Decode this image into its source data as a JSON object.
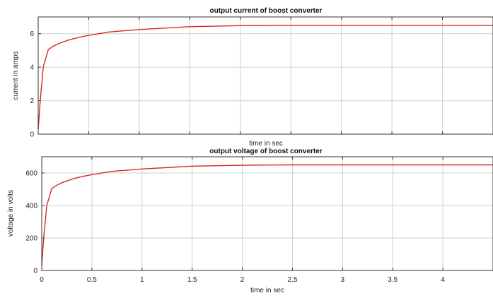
{
  "colors": {
    "line": "#d62728",
    "grid": "#cfcfcf",
    "frame": "#333333",
    "background": "#ffffff"
  },
  "chart_data": [
    {
      "type": "line",
      "title": "output current of boost converter",
      "xlabel": "time in sec",
      "ylabel": "current in amps",
      "xlim": [
        0,
        4.5
      ],
      "ylim": [
        0,
        7
      ],
      "xticks": [
        0,
        0.5,
        1,
        1.5,
        2,
        2.5,
        3,
        3.5,
        4
      ],
      "xtick_labels": [
        "",
        "",
        "",
        "",
        "",
        "",
        "",
        "",
        ""
      ],
      "yticks": [
        0,
        2,
        4,
        6
      ],
      "ytick_labels": [
        "0",
        "2",
        "4",
        "6"
      ],
      "grid": true,
      "series": [
        {
          "x": [
            0,
            0.02,
            0.05,
            0.1,
            0.15,
            0.2,
            0.3,
            0.4,
            0.5,
            0.7,
            1,
            1.5,
            2,
            2.5,
            3,
            3.5,
            4,
            4.5
          ],
          "y": [
            0.3,
            2.0,
            4.0,
            5.05,
            5.25,
            5.4,
            5.62,
            5.78,
            5.9,
            6.1,
            6.25,
            6.42,
            6.48,
            6.5,
            6.5,
            6.5,
            6.5,
            6.5
          ]
        }
      ]
    },
    {
      "type": "line",
      "title": "output voltage of boost converter",
      "xlabel": "time in sec",
      "ylabel": "voltage in volts",
      "xlim": [
        0,
        4.5
      ],
      "ylim": [
        0,
        700
      ],
      "xticks": [
        0,
        0.5,
        1,
        1.5,
        2,
        2.5,
        3,
        3.5,
        4
      ],
      "xtick_labels": [
        "0",
        "0.5",
        "1",
        "1.5",
        "2",
        "2.5",
        "3",
        "3.5",
        "4"
      ],
      "yticks": [
        0,
        200,
        400,
        600
      ],
      "ytick_labels": [
        "0",
        "200",
        "400",
        "600"
      ],
      "grid": true,
      "series": [
        {
          "x": [
            0,
            0.02,
            0.05,
            0.1,
            0.15,
            0.2,
            0.3,
            0.4,
            0.5,
            0.7,
            1,
            1.5,
            2,
            2.5,
            3,
            3.5,
            4,
            4.5
          ],
          "y": [
            30,
            200,
            400,
            505,
            525,
            540,
            562,
            578,
            590,
            610,
            625,
            642,
            648,
            650,
            650,
            650,
            650,
            650
          ]
        }
      ]
    }
  ]
}
